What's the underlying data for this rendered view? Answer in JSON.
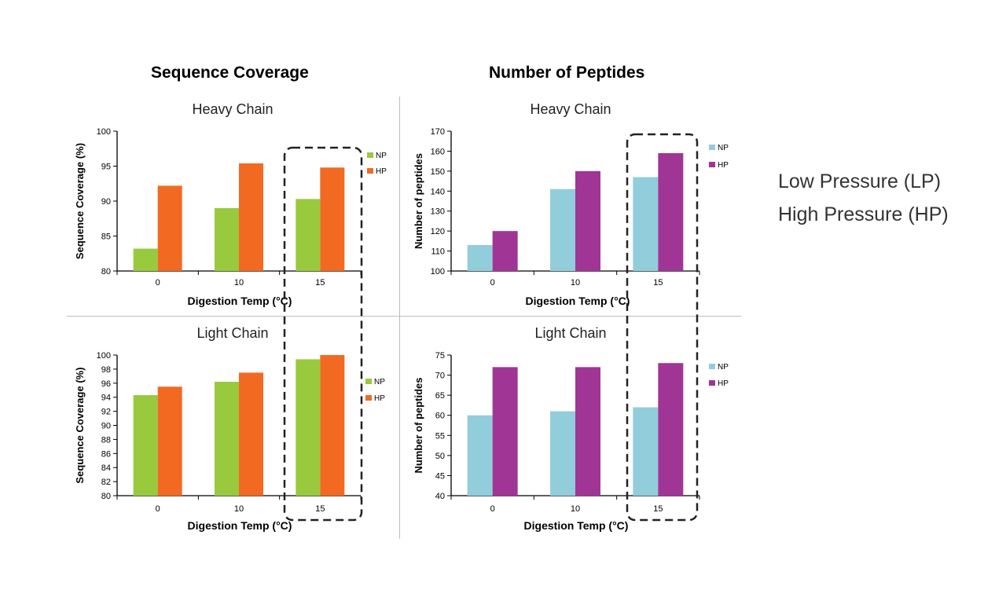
{
  "headers": {
    "left": "Sequence Coverage",
    "right": "Number of Peptides"
  },
  "pressure_labels": [
    "Low Pressure (LP)",
    "High Pressure (HP)"
  ],
  "colors": {
    "np_coverage": "#99c93d",
    "hp_coverage": "#f26a22",
    "np_peptides": "#92cddc",
    "hp_peptides": "#a03595"
  },
  "chart_data": [
    {
      "id": "cov-heavy",
      "type": "bar",
      "title": "Heavy Chain",
      "xlabel": "Digestion Temp (°C)",
      "ylabel": "Sequence Coverage (%)",
      "categories": [
        "0",
        "10",
        "15"
      ],
      "ylim": [
        80,
        100
      ],
      "yticks": [
        80,
        85,
        90,
        95,
        100
      ],
      "series": [
        {
          "name": "NP",
          "color": "#99c93d",
          "values": [
            83.2,
            89.0,
            90.3
          ]
        },
        {
          "name": "HP",
          "color": "#f26a22",
          "values": [
            92.2,
            95.4,
            94.8
          ]
        }
      ],
      "legend": "right"
    },
    {
      "id": "pep-heavy",
      "type": "bar",
      "title": "Heavy Chain",
      "xlabel": "Digestion Temp (°C)",
      "ylabel": "Number of peptides",
      "categories": [
        "0",
        "10",
        "15"
      ],
      "ylim": [
        100,
        170
      ],
      "yticks": [
        100,
        110,
        120,
        130,
        140,
        150,
        160,
        170
      ],
      "series": [
        {
          "name": "NP",
          "color": "#92cddc",
          "values": [
            113,
            141,
            147
          ]
        },
        {
          "name": "HP",
          "color": "#a03595",
          "values": [
            120,
            150,
            159
          ]
        }
      ],
      "legend": "right"
    },
    {
      "id": "cov-light",
      "type": "bar",
      "title": "Light Chain",
      "xlabel": "Digestion Temp (°C)",
      "ylabel": "Sequence Coverage (%)",
      "categories": [
        "0",
        "10",
        "15"
      ],
      "ylim": [
        80,
        100
      ],
      "yticks": [
        80,
        82,
        84,
        86,
        88,
        90,
        92,
        94,
        96,
        98,
        100
      ],
      "series": [
        {
          "name": "NP",
          "color": "#99c93d",
          "values": [
            94.3,
            96.2,
            99.4
          ]
        },
        {
          "name": "HP",
          "color": "#f26a22",
          "values": [
            95.5,
            97.5,
            100
          ]
        }
      ],
      "legend": "right"
    },
    {
      "id": "pep-light",
      "type": "bar",
      "title": "Light Chain",
      "xlabel": "Digestion Temp (°C)",
      "ylabel": "Number of peptides",
      "categories": [
        "0",
        "10",
        "15"
      ],
      "ylim": [
        40,
        75
      ],
      "yticks": [
        40,
        45,
        50,
        55,
        60,
        65,
        70,
        75
      ],
      "series": [
        {
          "name": "NP",
          "color": "#92cddc",
          "values": [
            60,
            61,
            62
          ]
        },
        {
          "name": "HP",
          "color": "#a03595",
          "values": [
            72,
            72,
            73
          ]
        }
      ],
      "legend": "right"
    }
  ]
}
